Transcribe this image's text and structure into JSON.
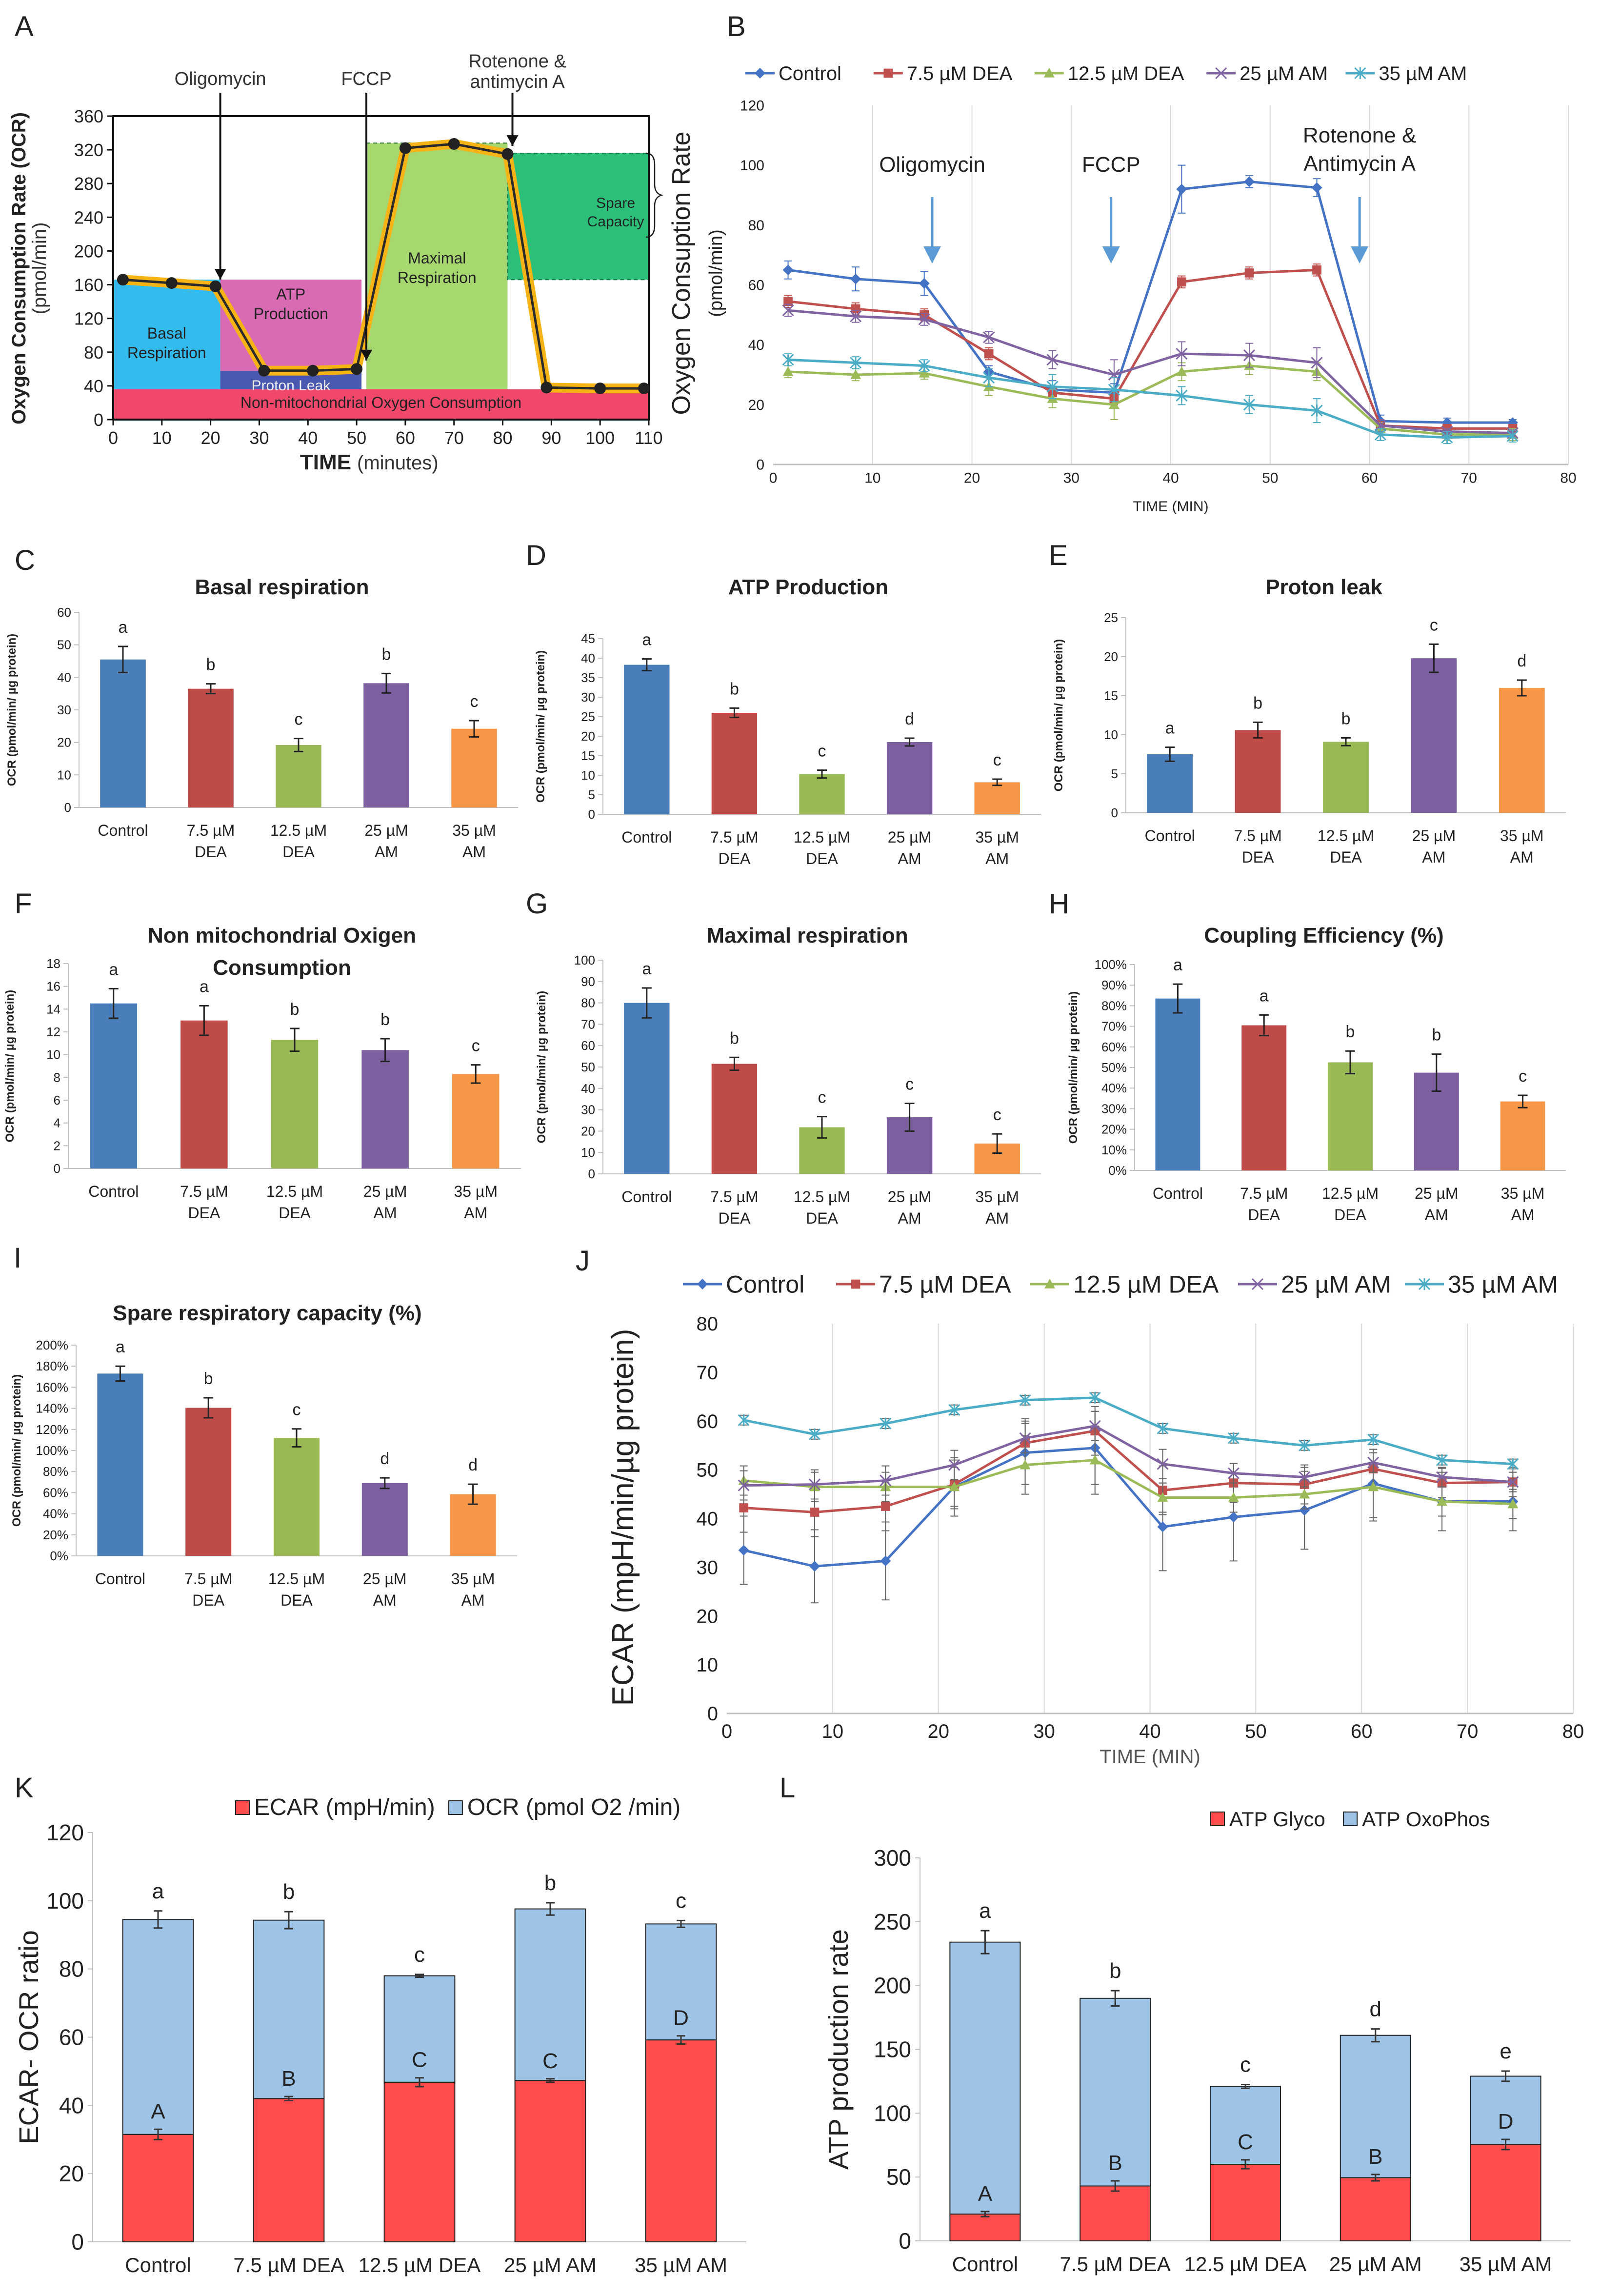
{
  "colors": {
    "control": "#4472C4",
    "dea75": "#C0504D",
    "dea125": "#9BBB59",
    "am25": "#8064A2",
    "am35": "#4BACC6",
    "c_control": "#4A7EBB",
    "c_dea75": "#BE4B48",
    "c_dea125": "#98B954",
    "c_am25": "#7D60A0",
    "c_am35": "#F79646",
    "ecar_red": "#FF4D4D",
    "ocr_blue": "#9DC3E6",
    "a_basal": "#33BBEE",
    "a_atp": "#D96BB4",
    "a_leak": "#4A58B0",
    "a_max": "#A6D86F",
    "a_spare": "#2BBF7A",
    "a_nonmito": "#F0476A",
    "a_trace": "#F5B316"
  },
  "chart_data": [
    {
      "id": "A",
      "type": "line",
      "panel_label": "A",
      "ylabel": "Oxygen Consumption Rate (OCR)",
      "ylabel_unit": "(pmol/min)",
      "xlabel": "TIME",
      "xlabel_unit": "(minutes)",
      "ylim": [
        0,
        360
      ],
      "yticks": [
        0,
        40,
        80,
        120,
        160,
        200,
        240,
        280,
        320,
        360
      ],
      "xlim": [
        0,
        110
      ],
      "xticks": [
        0,
        10,
        20,
        30,
        40,
        50,
        60,
        70,
        80,
        90,
        100,
        110
      ],
      "x": [
        2,
        12,
        21,
        31,
        41,
        50,
        60,
        70,
        81,
        89,
        100,
        109
      ],
      "y": [
        166,
        162,
        158,
        58,
        58,
        60,
        322,
        327,
        315,
        38,
        37,
        37
      ],
      "injections": [
        {
          "label": "Oligomycin",
          "x": 22
        },
        {
          "label": "FCCP",
          "x": 52
        },
        {
          "label_line1": "Rotenone &",
          "label_line2": "antimycin A",
          "x": 82
        }
      ],
      "regions": {
        "basal_line1": "Basal",
        "basal_line2": "Respiration",
        "atp_line1": "ATP",
        "atp_line2": "Production",
        "proton_leak": "Proton Leak",
        "maximal_line1": "Maximal",
        "maximal_line2": "Respiration",
        "spare_line1": "Spare",
        "spare_line2": "Capacity",
        "nonmito": "Non-mitochondrial Oxygen Consumption"
      }
    },
    {
      "id": "B",
      "type": "line",
      "panel_label": "B",
      "ylabel_line1": "Oxygen Consuption Rate",
      "ylabel_line2": "(pmol/min)",
      "xlabel": "TIME (MIN)",
      "ylim": [
        0,
        120
      ],
      "yticks": [
        0,
        20,
        40,
        60,
        80,
        100,
        120
      ],
      "xlim": [
        0,
        80
      ],
      "xticks": [
        0,
        10,
        20,
        30,
        40,
        50,
        60,
        70,
        80
      ],
      "vgrid": [
        10,
        20,
        30,
        40,
        50,
        60,
        70,
        80
      ],
      "x": [
        1.5,
        8.3,
        15.2,
        21.7,
        28.1,
        34.3,
        41.1,
        47.9,
        54.7,
        61.1,
        67.8,
        74.4
      ],
      "series": [
        {
          "name": "Control",
          "color_key": "control",
          "marker": "diamond",
          "values": [
            65,
            62,
            60.5,
            31,
            25,
            24,
            92,
            94.5,
            92.5,
            14.5,
            14,
            14
          ],
          "errors": [
            3,
            4,
            4,
            2,
            3,
            3,
            8,
            2,
            3,
            2,
            1.5,
            1
          ]
        },
        {
          "name": "7.5 µM DEA",
          "color_key": "dea75",
          "marker": "square",
          "values": [
            54.5,
            52,
            50,
            37,
            24,
            22,
            61,
            64,
            65,
            13,
            12,
            12
          ],
          "errors": [
            2,
            2,
            2,
            2,
            2,
            2,
            2,
            2,
            2,
            1,
            1,
            1
          ]
        },
        {
          "name": "12.5 µM DEA",
          "color_key": "dea125",
          "marker": "triangle",
          "values": [
            31,
            30,
            30.5,
            26,
            22,
            20,
            31,
            33,
            31,
            12,
            10,
            10
          ],
          "errors": [
            2,
            2,
            2,
            3,
            3,
            5,
            3,
            3,
            3,
            2,
            2,
            2
          ]
        },
        {
          "name": "25 µM AM",
          "color_key": "am25",
          "marker": "x",
          "values": [
            51.5,
            49.5,
            48.5,
            42.5,
            35,
            30,
            37,
            36.5,
            34,
            13,
            11,
            10.5
          ],
          "errors": [
            2,
            2,
            2,
            2,
            3,
            5,
            4,
            4,
            5,
            2,
            1,
            1
          ]
        },
        {
          "name": "35 µM AM",
          "color_key": "am35",
          "marker": "star",
          "values": [
            35,
            34,
            33,
            29,
            26,
            25,
            23,
            20,
            18,
            10,
            9,
            9.5
          ],
          "errors": [
            2,
            2,
            2,
            3,
            4,
            4,
            3,
            3,
            4,
            2,
            2,
            2
          ]
        }
      ],
      "injections": [
        {
          "label": "Oligomycin",
          "x": 16
        },
        {
          "label": "FCCP",
          "x": 34
        },
        {
          "label_line1": "Rotenone &",
          "label_line2": "Antimycin A",
          "x": 59
        }
      ]
    },
    {
      "id": "C",
      "type": "bar",
      "panel_label": "C",
      "title": "Basal respiration",
      "ylabel": "OCR (pmol/min/ µg protein)",
      "ylim": [
        0,
        60
      ],
      "yticks": [
        0,
        10,
        20,
        30,
        40,
        50,
        60
      ],
      "categories": [
        "Control",
        "7.5 µM|DEA",
        "12.5 µM|DEA",
        "25 µM|AM",
        "35 µM|AM"
      ],
      "values": [
        45.5,
        36.5,
        19.2,
        38.2,
        24.2
      ],
      "errors": [
        4,
        1.5,
        2,
        3,
        2.5
      ],
      "letters": [
        "a",
        "b",
        "c",
        "b",
        "c"
      ]
    },
    {
      "id": "D",
      "type": "bar",
      "panel_label": "D",
      "title": "ATP Production",
      "ylabel": "OCR (pmol/min/ µg protein)",
      "ylim": [
        0,
        45
      ],
      "yticks": [
        0,
        5,
        10,
        15,
        20,
        25,
        30,
        35,
        40,
        45
      ],
      "categories": [
        "Control",
        "7.5 µM|DEA",
        "12.5 µM|DEA",
        "25 µM|AM",
        "35 µM|AM"
      ],
      "values": [
        38.3,
        26,
        10.3,
        18.5,
        8.2
      ],
      "errors": [
        1.5,
        1.2,
        1,
        1,
        0.8
      ],
      "letters": [
        "a",
        "b",
        "c",
        "d",
        "c"
      ]
    },
    {
      "id": "E",
      "type": "bar",
      "panel_label": "E",
      "title": "Proton leak",
      "ylabel": "OCR (pmol/min/ µg protein)",
      "ylim": [
        0,
        25
      ],
      "yticks": [
        0,
        5,
        10,
        15,
        20,
        25
      ],
      "categories": [
        "Control",
        "7.5 µM|DEA",
        "12.5 µM|DEA",
        "25 µM|AM",
        "35 µM|AM"
      ],
      "values": [
        7.5,
        10.6,
        9.1,
        19.8,
        16
      ],
      "errors": [
        0.9,
        1,
        0.5,
        1.8,
        1
      ],
      "letters": [
        "a",
        "b",
        "b",
        "c",
        "d"
      ]
    },
    {
      "id": "F",
      "type": "bar",
      "panel_label": "F",
      "title_line1": "Non mitochondrial Oxigen",
      "title_line2": "Consumption",
      "ylabel": "OCR (pmol/min/ µg protein)",
      "ylim": [
        0,
        18
      ],
      "yticks": [
        0,
        2,
        4,
        6,
        8,
        10,
        12,
        14,
        16,
        18
      ],
      "categories": [
        "Control",
        "7.5 µM|DEA",
        "12.5 µM|DEA",
        "25 µM|AM",
        "35 µM|AM"
      ],
      "values": [
        14.5,
        13,
        11.3,
        10.4,
        8.3
      ],
      "errors": [
        1.3,
        1.3,
        1,
        1,
        0.8
      ],
      "letters": [
        "a",
        "a",
        "b",
        "b",
        "c"
      ]
    },
    {
      "id": "G",
      "type": "bar",
      "panel_label": "G",
      "title": "Maximal respiration",
      "ylabel": "OCR (pmol/min/ µg protein)",
      "ylim": [
        0,
        100
      ],
      "yticks": [
        0,
        10,
        20,
        30,
        40,
        50,
        60,
        70,
        80,
        90,
        100
      ],
      "categories": [
        "Control",
        "7.5 µM|DEA",
        "12.5 µM|DEA",
        "25 µM|AM",
        "35 µM|AM"
      ],
      "values": [
        80,
        51.5,
        21.8,
        26.5,
        14.2
      ],
      "errors": [
        7,
        3,
        5,
        6.5,
        4.5
      ],
      "letters": [
        "a",
        "b",
        "c",
        "c",
        "c"
      ]
    },
    {
      "id": "H",
      "type": "bar",
      "panel_label": "H",
      "title": "Coupling Efficiency (%)",
      "ylabel": "OCR (pmol/min/ µg protein)",
      "ylim": [
        0,
        100
      ],
      "yticks": [
        0,
        10,
        20,
        30,
        40,
        50,
        60,
        70,
        80,
        90,
        100
      ],
      "tick_suffix": "%",
      "categories": [
        "Control",
        "7.5 µM|DEA",
        "12.5 µM|DEA",
        "25 µM|AM",
        "35 µM|AM"
      ],
      "values": [
        83.5,
        70.5,
        52.5,
        47.5,
        33.5
      ],
      "errors": [
        7,
        5,
        5.5,
        9,
        3
      ],
      "letters": [
        "a",
        "a",
        "b",
        "b",
        "c"
      ]
    },
    {
      "id": "I",
      "type": "bar",
      "panel_label": "I",
      "title": "Spare respiratory capacity (%)",
      "ylabel": "OCR (pmol/min/ µg protein)",
      "ylim": [
        0,
        200
      ],
      "yticks": [
        0,
        20,
        40,
        60,
        80,
        100,
        120,
        140,
        160,
        180,
        200
      ],
      "tick_suffix": "%",
      "categories": [
        "Control",
        "7.5 µM|DEA",
        "12.5 µM|DEA",
        "25 µM|AM",
        "35 µM|AM"
      ],
      "values": [
        173,
        140.5,
        112,
        69,
        58.5
      ],
      "errors": [
        7,
        9.5,
        8.5,
        5,
        9.5
      ],
      "letters": [
        "a",
        "b",
        "c",
        "d",
        "d"
      ]
    },
    {
      "id": "J",
      "type": "line",
      "panel_label": "J",
      "ylabel": "ECAR (mpH/min/µg protein)",
      "xlabel": "TIME (MIN)",
      "ylim": [
        0,
        80
      ],
      "yticks": [
        0,
        10,
        20,
        30,
        40,
        50,
        60,
        70,
        80
      ],
      "xlim": [
        0,
        80
      ],
      "xticks": [
        0,
        10,
        20,
        30,
        40,
        50,
        60,
        70,
        80
      ],
      "vgrid": [
        10,
        20,
        30,
        40,
        50,
        60,
        70,
        80
      ],
      "x": [
        1.6,
        8.3,
        15,
        21.5,
        28.2,
        34.8,
        41.2,
        47.9,
        54.6,
        61.1,
        67.6,
        74.3
      ],
      "series": [
        {
          "name": "Control",
          "color_key": "control",
          "marker": "diamond",
          "values": [
            33.5,
            30.2,
            31.3,
            46.5,
            53.5,
            54.5,
            38.3,
            40.3,
            41.7,
            47.2,
            43.5,
            43.5
          ],
          "errors": [
            7,
            7.5,
            8,
            6,
            6.5,
            7.5,
            9,
            9,
            8,
            7,
            6,
            6
          ]
        },
        {
          "name": "7.5 µM DEA",
          "color_key": "dea75",
          "marker": "square",
          "values": [
            42.2,
            41.3,
            42.5,
            47,
            55.5,
            58,
            45.8,
            47.3,
            47,
            50.2,
            47.3,
            47.5
          ],
          "errors": [
            5,
            5,
            5,
            5,
            5,
            5,
            5,
            4,
            4,
            4,
            3,
            3
          ]
        },
        {
          "name": "12.5 µM DEA",
          "color_key": "dea125",
          "marker": "triangle",
          "values": [
            47.8,
            46.5,
            46.5,
            46.5,
            51,
            52,
            44.3,
            44.3,
            45,
            46.5,
            43.5,
            43
          ],
          "errors": [
            3,
            3,
            3,
            4,
            6,
            7,
            3,
            3,
            3,
            7,
            3,
            3
          ]
        },
        {
          "name": "25 µM AM",
          "color_key": "am25",
          "marker": "x",
          "values": [
            46.8,
            47,
            47.8,
            51,
            56.5,
            59,
            51.2,
            49.3,
            48.5,
            51.5,
            48.5,
            47.5
          ],
          "errors": [
            3,
            3,
            3,
            3,
            3,
            3,
            3,
            2,
            2,
            2,
            2,
            2
          ]
        },
        {
          "name": "35 µM AM",
          "color_key": "am35",
          "marker": "star",
          "values": [
            60.2,
            57.3,
            59.5,
            62.3,
            64.3,
            64.8,
            58.5,
            56.5,
            55,
            56.2,
            52,
            51.2
          ],
          "errors": [
            1,
            1,
            1,
            1,
            1,
            1,
            1,
            1,
            1,
            1,
            1,
            1
          ]
        }
      ]
    },
    {
      "id": "K",
      "type": "bar",
      "stacked": true,
      "panel_label": "K",
      "ylabel": "ECAR- OCR ratio",
      "ylim": [
        0,
        120
      ],
      "yticks": [
        0,
        20,
        40,
        60,
        80,
        100,
        120
      ],
      "categories": [
        "Control",
        "7.5 µM DEA",
        "12.5 µM DEA",
        "25 µM AM",
        "35 µM AM"
      ],
      "series": [
        {
          "name": "ECAR (mpH/min)",
          "color_key": "ecar_red",
          "values": [
            31.5,
            42,
            46.8,
            47.3,
            59.2
          ],
          "errors": [
            1.5,
            0.6,
            1.3,
            0.5,
            1.2
          ],
          "letters": [
            "A",
            "B",
            "C",
            "C",
            "D"
          ]
        },
        {
          "name": "OCR (pmol O2 /min)",
          "color_key": "ocr_blue",
          "values": [
            63,
            52.3,
            31.2,
            50.3,
            34
          ],
          "errors": [
            2.5,
            2.5,
            0.4,
            1.8,
            1
          ],
          "letters": [
            "a",
            "b",
            "c",
            "b",
            "c"
          ]
        }
      ]
    },
    {
      "id": "L",
      "type": "bar",
      "stacked": true,
      "panel_label": "L",
      "ylabel": "ATP production rate",
      "ylim": [
        0,
        300
      ],
      "yticks": [
        0,
        50,
        100,
        150,
        200,
        250,
        300
      ],
      "categories": [
        "Control",
        "7.5 µM DEA",
        "12.5 µM DEA",
        "25 µM AM",
        "35 µM AM"
      ],
      "series": [
        {
          "name": "ATP Glyco",
          "color_key": "ecar_red",
          "values": [
            21,
            43,
            60,
            49.5,
            75.5
          ],
          "errors": [
            2,
            4,
            3.5,
            2.5,
            4
          ],
          "letters": [
            "A",
            "B",
            "C",
            "B",
            "D"
          ]
        },
        {
          "name": "ATP OxoPhos",
          "color_key": "ocr_blue",
          "values": [
            213,
            147,
            61,
            111.5,
            53.5
          ],
          "errors": [
            9,
            6,
            1.5,
            5,
            4
          ],
          "letters": [
            "a",
            "b",
            "c",
            "d",
            "e"
          ]
        }
      ]
    }
  ]
}
